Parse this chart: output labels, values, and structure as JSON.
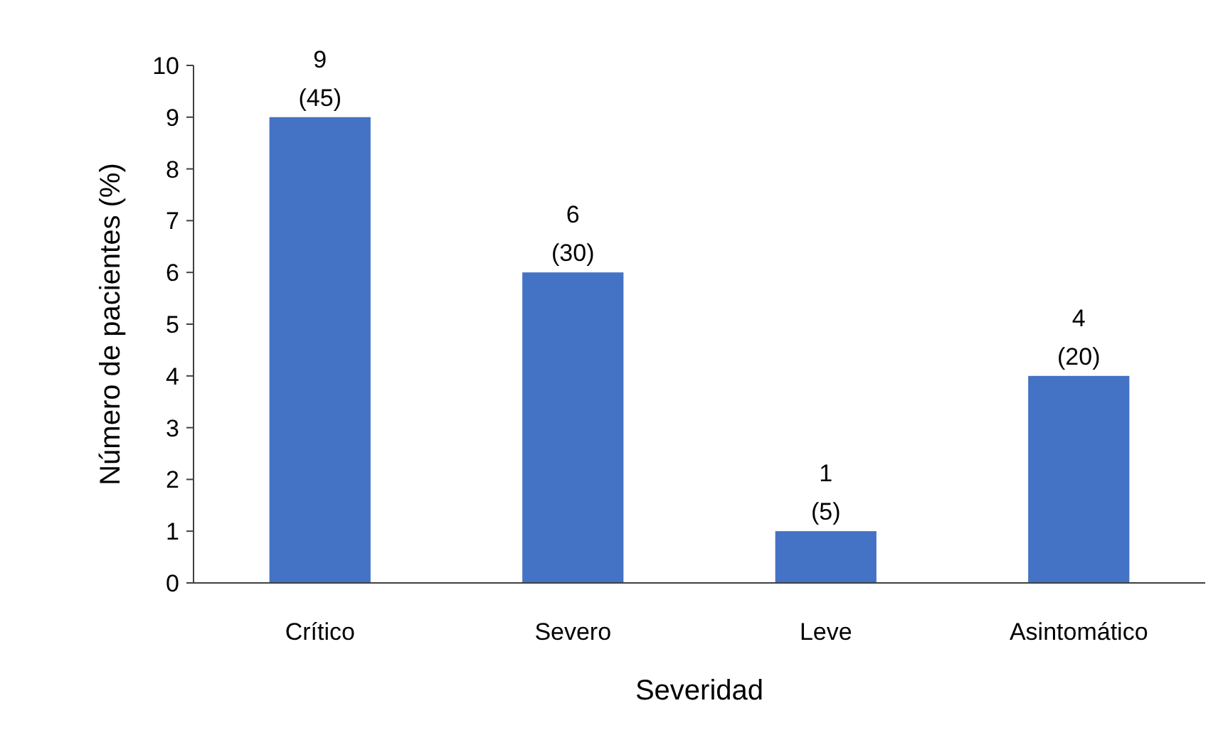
{
  "chart_data": {
    "type": "bar",
    "xlabel": "Severidad",
    "ylabel": "Número de pacientes (%)",
    "categories": [
      "Crítico",
      "Severo",
      "Leve",
      "Asintomático"
    ],
    "values": [
      9,
      6,
      1,
      4
    ],
    "color": "#4472c4",
    "value_labels": [
      "9\n(45)",
      "6\n(30)",
      "1\n(5)",
      "4\n(20)"
    ],
    "ylim": [
      0,
      10
    ],
    "yticks": [
      0,
      1,
      2,
      3,
      4,
      5,
      6,
      7,
      8,
      9,
      10
    ],
    "grid": false
  }
}
